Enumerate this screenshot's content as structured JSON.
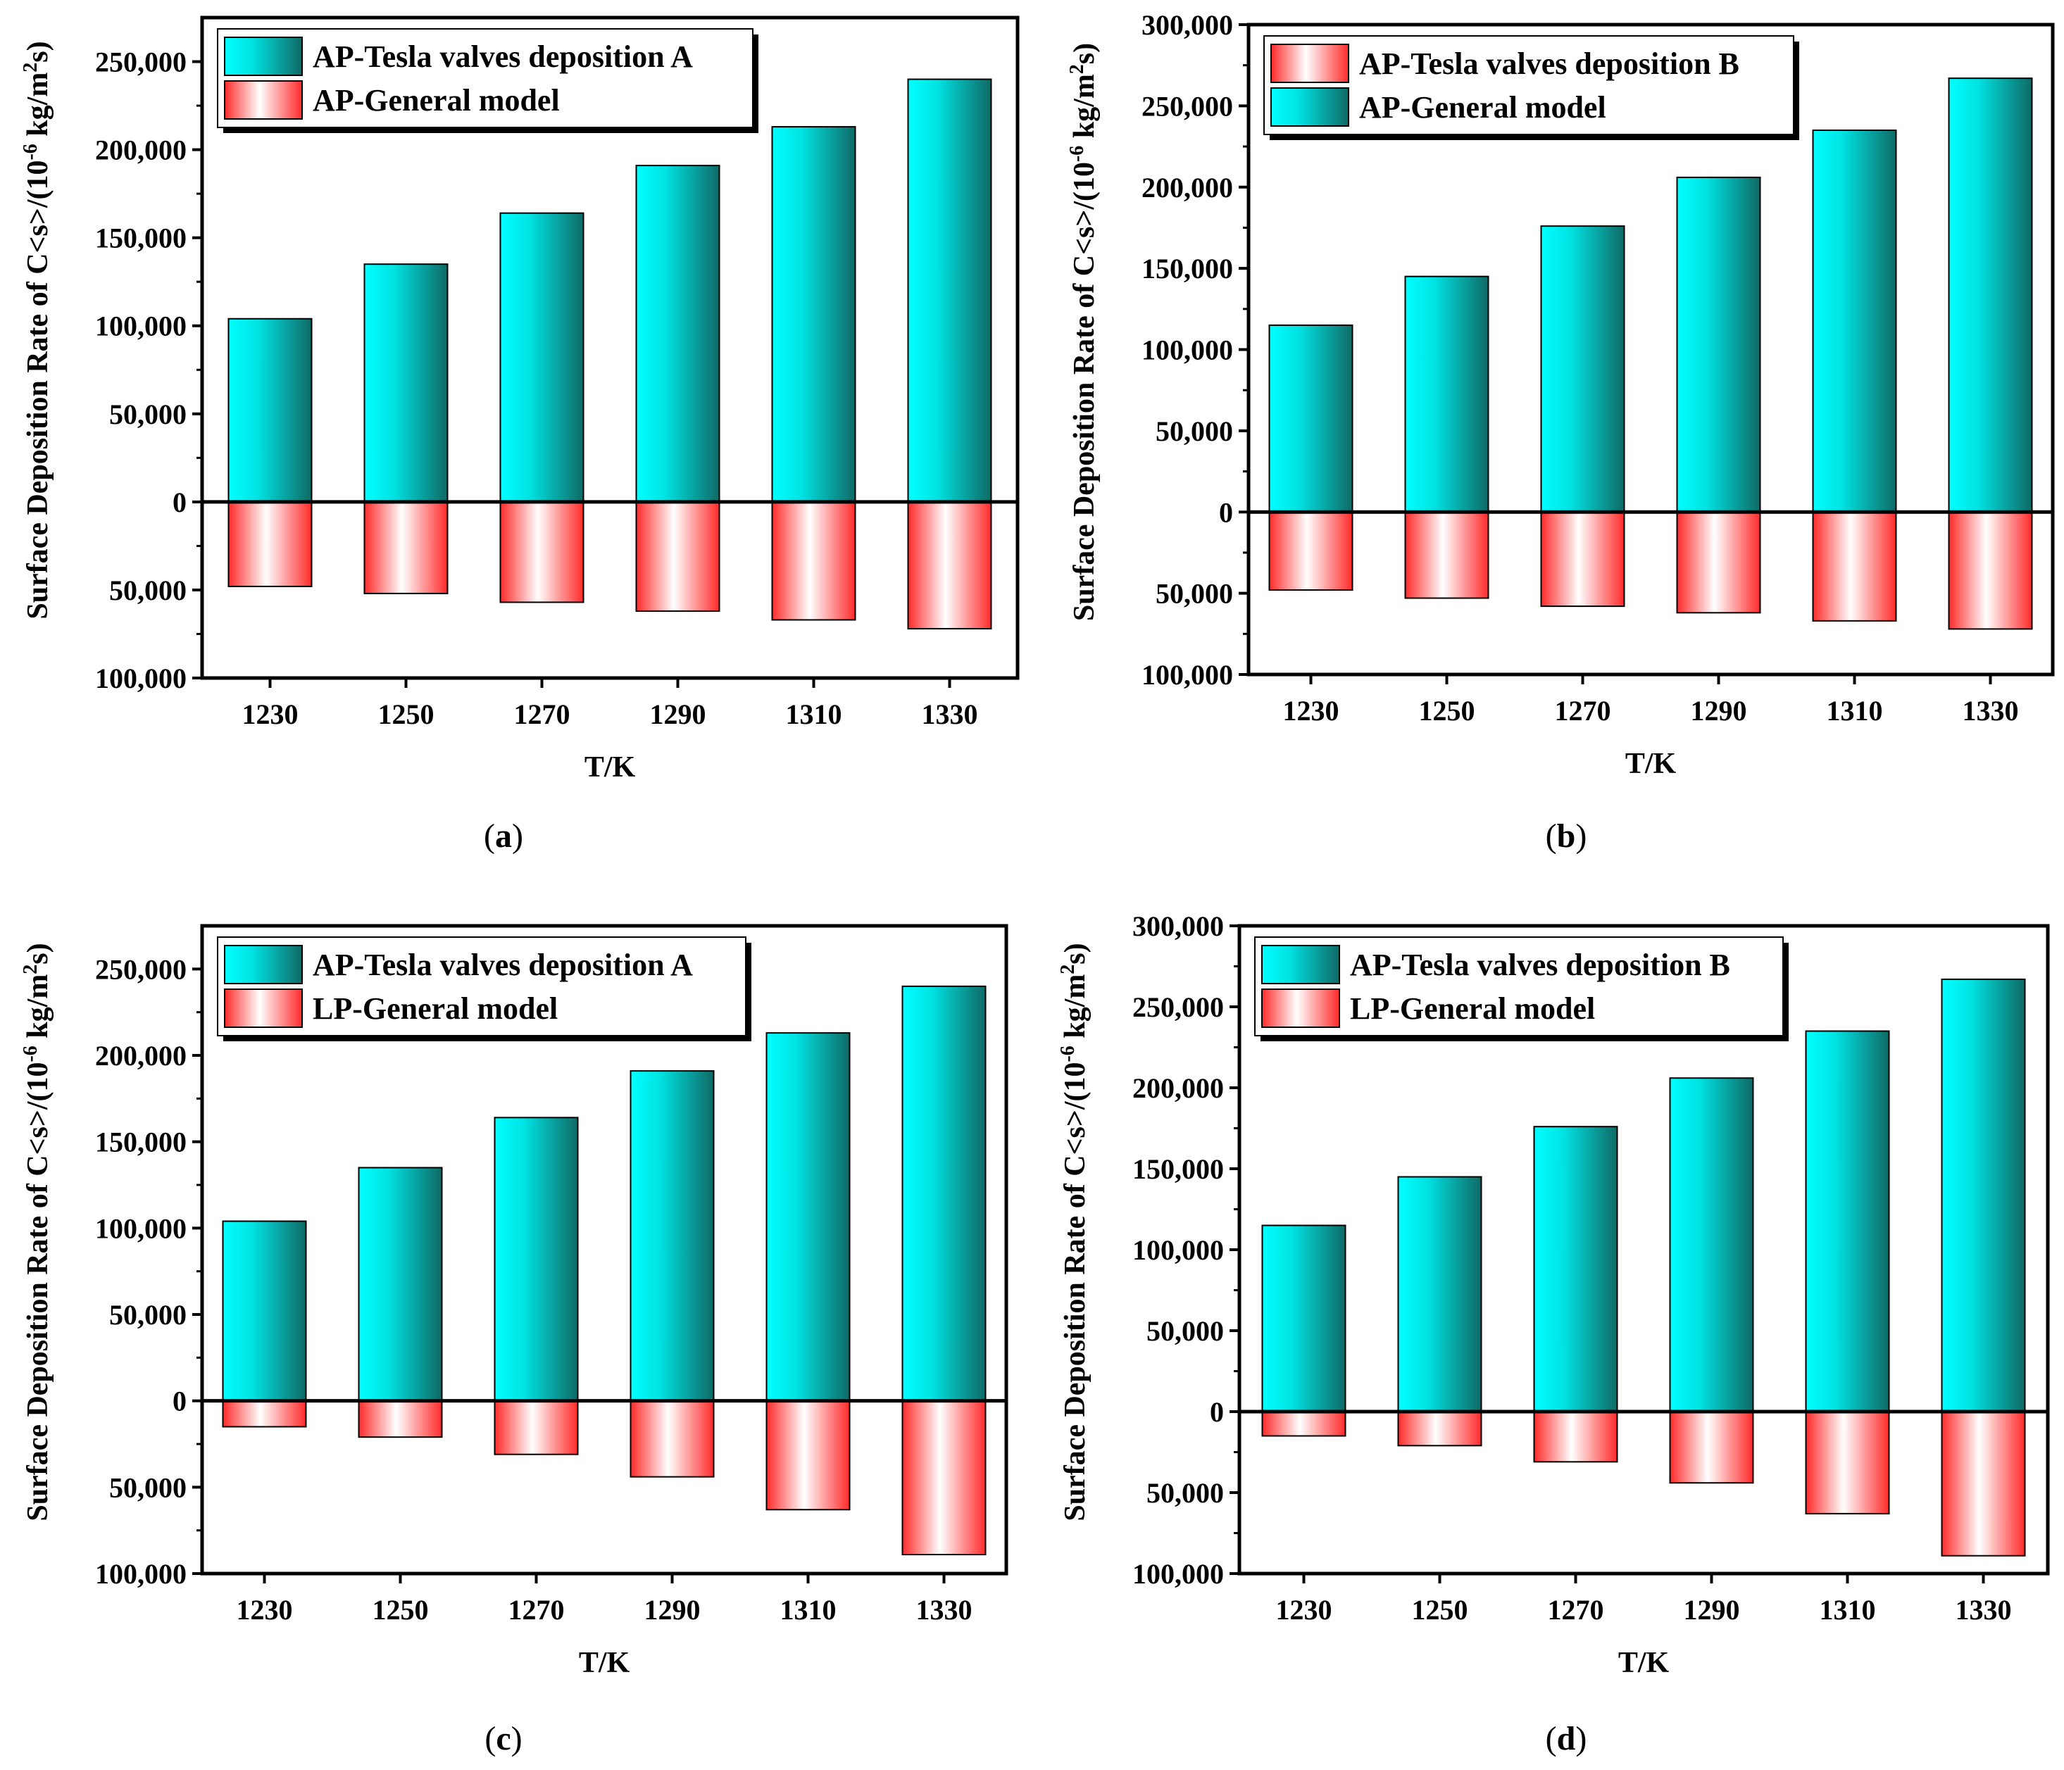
{
  "colors": {
    "cyan_light": "#00ffff",
    "cyan_dark": "#0f6a66",
    "red_light": "#ffffff",
    "red_dark": "#ff2a2a"
  },
  "chart_data": [
    {
      "id": "a",
      "type": "bar",
      "caption": "a",
      "categories": [
        "1230",
        "1250",
        "1270",
        "1290",
        "1310",
        "1330"
      ],
      "xlabel": "T/K",
      "ylabel": "Surface Deposition Rate of C<s>/(10",
      "ylabel_sup": "-6",
      "ylabel_tail": " kg/m",
      "ylabel_sup2": "2",
      "ylabel_end": "s)",
      "ylim": [
        -100000,
        275000
      ],
      "yticks": [
        -100000,
        -50000,
        0,
        50000,
        100000,
        150000,
        200000,
        250000
      ],
      "ytick_labels": [
        "100,000",
        "50,000",
        "0",
        "50,000",
        "100,000",
        "150,000",
        "200,000",
        "250,000"
      ],
      "series": [
        {
          "name": "AP-Tesla valves deposition A",
          "style": "cyan",
          "values": [
            104000,
            135000,
            164000,
            191000,
            213000,
            240000
          ]
        },
        {
          "name": "AP-General model",
          "style": "red",
          "values": [
            -48000,
            -52000,
            -57000,
            -62000,
            -67000,
            -72000
          ]
        }
      ]
    },
    {
      "id": "b",
      "type": "bar",
      "caption": "b",
      "categories": [
        "1230",
        "1250",
        "1270",
        "1290",
        "1310",
        "1330"
      ],
      "xlabel": "T/K",
      "ylabel": "Surface Deposition Rate of C<s>/(10",
      "ylabel_sup": "-6",
      "ylabel_tail": " kg/m",
      "ylabel_sup2": "2",
      "ylabel_end": "s)",
      "ylim": [
        -100000,
        300000
      ],
      "yticks": [
        -100000,
        -50000,
        0,
        50000,
        100000,
        150000,
        200000,
        250000,
        300000
      ],
      "ytick_labels": [
        "100,000",
        "50,000",
        "0",
        "50,000",
        "100,000",
        "150,000",
        "200,000",
        "250,000",
        "300,000"
      ],
      "series": [
        {
          "name": "AP-Tesla valves deposition B",
          "style": "red",
          "values": [
            -48000,
            -53000,
            -58000,
            -62000,
            -67000,
            -72000
          ]
        },
        {
          "name": "AP-General model",
          "style": "cyan",
          "values": [
            115000,
            145000,
            176000,
            206000,
            235000,
            267000
          ]
        }
      ]
    },
    {
      "id": "c",
      "type": "bar",
      "caption": "c",
      "categories": [
        "1230",
        "1250",
        "1270",
        "1290",
        "1310",
        "1330"
      ],
      "xlabel": "T/K",
      "ylabel": "Surface Deposition Rate of C<s>/(10",
      "ylabel_sup": "-6",
      "ylabel_tail": " kg/m",
      "ylabel_sup2": "2",
      "ylabel_end": "s)",
      "ylim": [
        -100000,
        275000
      ],
      "yticks": [
        -100000,
        -50000,
        0,
        50000,
        100000,
        150000,
        200000,
        250000
      ],
      "ytick_labels": [
        "100,000",
        "50,000",
        "0",
        "50,000",
        "100,000",
        "150,000",
        "200,000",
        "250,000"
      ],
      "series": [
        {
          "name": "AP-Tesla valves deposition A",
          "style": "cyan",
          "values": [
            104000,
            135000,
            164000,
            191000,
            213000,
            240000
          ]
        },
        {
          "name": "LP-General model",
          "style": "red",
          "values": [
            -15000,
            -21000,
            -31000,
            -44000,
            -63000,
            -89000
          ]
        }
      ]
    },
    {
      "id": "d",
      "type": "bar",
      "caption": "d",
      "categories": [
        "1230",
        "1250",
        "1270",
        "1290",
        "1310",
        "1330"
      ],
      "xlabel": "T/K",
      "ylabel": "Surface Deposition Rate of C<s>/(10",
      "ylabel_sup": "-6",
      "ylabel_tail": " kg/m",
      "ylabel_sup2": "2",
      "ylabel_end": "s)",
      "ylim": [
        -100000,
        300000
      ],
      "yticks": [
        -100000,
        -50000,
        0,
        50000,
        100000,
        150000,
        200000,
        250000,
        300000
      ],
      "ytick_labels": [
        "100,000",
        "50,000",
        "0",
        "50,000",
        "100,000",
        "150,000",
        "200,000",
        "250,000",
        "300,000"
      ],
      "series": [
        {
          "name": "AP-Tesla valves deposition B",
          "style": "cyan",
          "values": [
            115000,
            145000,
            176000,
            206000,
            235000,
            267000
          ]
        },
        {
          "name": "LP-General model",
          "style": "red",
          "values": [
            -15000,
            -21000,
            -31000,
            -44000,
            -63000,
            -89000
          ]
        }
      ]
    }
  ]
}
